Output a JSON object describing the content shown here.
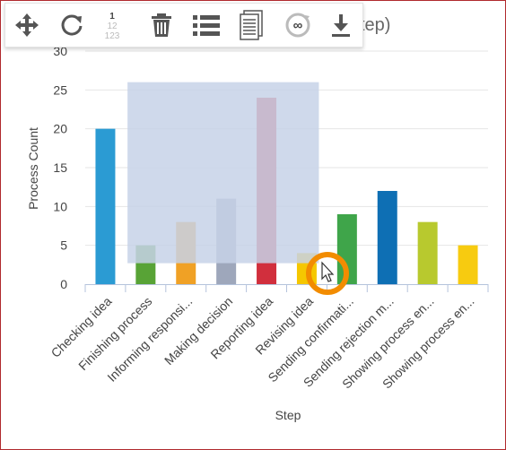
{
  "window": {
    "title_fragment": "tep)"
  },
  "toolbar": {
    "buttons": [
      {
        "name": "move-icon"
      },
      {
        "name": "refresh-icon"
      },
      {
        "name": "line-numbers-icon",
        "glyph": [
          "1",
          "12",
          "123"
        ]
      },
      {
        "name": "trash-icon"
      },
      {
        "name": "list-icon"
      },
      {
        "name": "document-icon"
      },
      {
        "name": "infinity-refresh-icon",
        "glyph": "∞"
      },
      {
        "name": "download-icon"
      }
    ]
  },
  "colors": {
    "selection": "#c7d2e8",
    "cursor_ring": "#f28c00"
  },
  "chart_data": {
    "type": "bar",
    "title": "",
    "xlabel": "Step",
    "ylabel": "Process Count",
    "ylim": [
      0,
      30
    ],
    "yticks": [
      0,
      5,
      10,
      15,
      20,
      25,
      30
    ],
    "grid": true,
    "categories": [
      "Checking idea",
      "Finishing process",
      "Informing responsi...",
      "Making decision",
      "Reporting idea",
      "Revising idea",
      "Sending confirmati...",
      "Sending rejection m...",
      "Showing process en...",
      "Showing process en..."
    ],
    "values": [
      20,
      5,
      8,
      11,
      24,
      4,
      9,
      12,
      8,
      5
    ],
    "colors": [
      "#2b9bd3",
      "#58a336",
      "#f0a125",
      "#9ea7bb",
      "#d12f3d",
      "#f5c700",
      "#3fa54a",
      "#0e6fb4",
      "#b8c92e",
      "#f7cb10"
    ],
    "selection_range": [
      2.7,
      26
    ]
  }
}
